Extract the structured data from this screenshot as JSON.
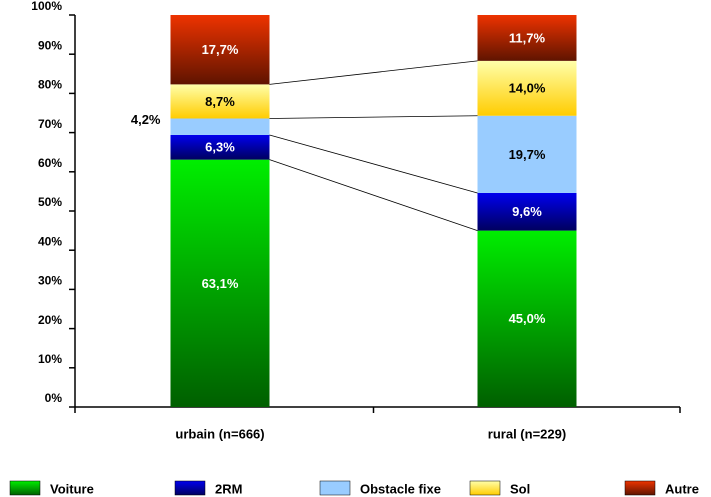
{
  "chart_data": {
    "type": "stacked_bar",
    "categories": [
      "urbain (n=666)",
      "rural (n=229)"
    ],
    "series": [
      {
        "name": "Voiture",
        "color": "#00ee00",
        "values": [
          63.1,
          45.0
        ],
        "value_labels": [
          "63,1%",
          "45,0%"
        ]
      },
      {
        "name": "2RM",
        "color": "#0000ee",
        "values": [
          6.3,
          9.6
        ],
        "value_labels": [
          "6,3%",
          "9,6%"
        ]
      },
      {
        "name": "Obstacle fixe",
        "color": "#99ccff",
        "values": [
          4.2,
          19.7
        ],
        "value_labels": [
          "4,2%",
          "19,7%"
        ]
      },
      {
        "name": "Sol",
        "color": "#ffee44",
        "values": [
          8.7,
          14.0
        ],
        "value_labels": [
          "8,7%",
          "14,0%"
        ]
      },
      {
        "name": "Autre",
        "color": "#ee3300",
        "values": [
          17.7,
          11.7
        ],
        "value_labels": [
          "17,7%",
          "11,7%"
        ]
      }
    ],
    "ylim": [
      0,
      100
    ],
    "yticks": [
      {
        "value": 0,
        "label": "0%"
      },
      {
        "value": 10,
        "label": "10%"
      },
      {
        "value": 20,
        "label": "20%"
      },
      {
        "value": 30,
        "label": "30%"
      },
      {
        "value": 40,
        "label": "40%"
      },
      {
        "value": 50,
        "label": "50%"
      },
      {
        "value": 60,
        "label": "60%"
      },
      {
        "value": 70,
        "label": "70%"
      },
      {
        "value": 80,
        "label": "80%"
      },
      {
        "value": 90,
        "label": "90%"
      },
      {
        "value": 100,
        "label": "100%"
      }
    ],
    "legend": "bottom"
  }
}
